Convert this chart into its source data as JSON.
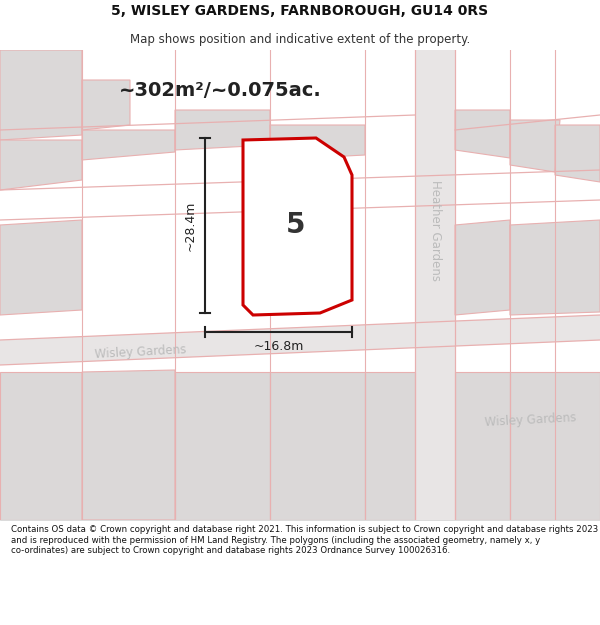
{
  "title": "5, WISLEY GARDENS, FARNBOROUGH, GU14 0RS",
  "subtitle": "Map shows position and indicative extent of the property.",
  "area_label": "~302m²/~0.075ac.",
  "plot_number": "5",
  "dim_width": "~16.8m",
  "dim_height": "~28.4m",
  "road_label_wisley1": "Wisley Gardens",
  "road_label_heather": "Heather Gardens",
  "road_label_wisley2": "Wisley Gardens",
  "footer": "Contains OS data © Crown copyright and database right 2021. This information is subject to Crown copyright and database rights 2023 and is reproduced with the permission of HM Land Registry. The polygons (including the associated geometry, namely x, y co-ordinates) are subject to Crown copyright and database rights 2023 Ordnance Survey 100026316.",
  "map_bg": "#edeaea",
  "plot_fill": "#ffffff",
  "plot_edge": "#cc0000",
  "block_fill": "#dbd8d8",
  "block_edge": "#e8b0b0",
  "road_fill": "#edeaea",
  "road_line": "#e8b0b0",
  "dim_color": "#222222",
  "road_text_color": "#bbbbbb",
  "title_color": "#111111",
  "footer_color": "#111111"
}
